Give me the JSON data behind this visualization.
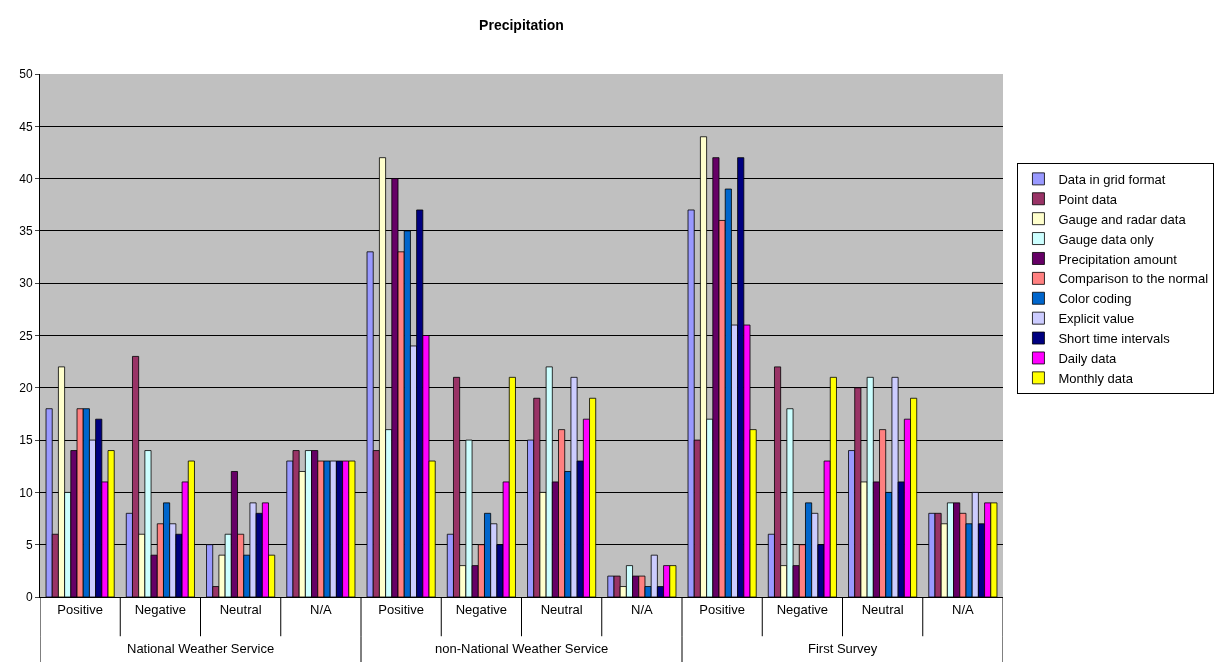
{
  "chart_data": {
    "type": "bar",
    "title": "Precipitation",
    "categories": [
      "Positive",
      "Negative",
      "Neutral",
      "N/A",
      "Positive",
      "Negative",
      "Neutral",
      "N/A",
      "Positive",
      "Negative",
      "Neutral",
      "N/A"
    ],
    "annotations": [
      "National Weather Service",
      "non-National Weather Service",
      "First Survey"
    ],
    "series": [
      {
        "name": "Data in grid format",
        "color": "#9999ff",
        "values": [
          18,
          8,
          5,
          13,
          33,
          6,
          15,
          2,
          37,
          6,
          14,
          8
        ]
      },
      {
        "name": "Point data",
        "color": "#993366",
        "values": [
          6,
          23,
          1,
          14,
          14,
          21,
          19,
          2,
          15,
          22,
          20,
          8
        ]
      },
      {
        "name": "Gauge and radar data",
        "color": "#ffffcc",
        "values": [
          22,
          6,
          4,
          12,
          42,
          3,
          10,
          1,
          44,
          3,
          11,
          7
        ]
      },
      {
        "name": "Gauge data only",
        "color": "#ccffff",
        "values": [
          10,
          14,
          6,
          14,
          16,
          15,
          22,
          3,
          17,
          18,
          21,
          9
        ]
      },
      {
        "name": "Precipitation amount",
        "color": "#660066",
        "values": [
          14,
          4,
          12,
          14,
          40,
          3,
          11,
          2,
          42,
          3,
          11,
          9
        ]
      },
      {
        "name": "Comparison to the normal",
        "color": "#ff8080",
        "values": [
          18,
          7,
          6,
          13,
          33,
          5,
          16,
          2,
          36,
          5,
          16,
          8
        ]
      },
      {
        "name": "Color coding",
        "color": "#0066cc",
        "values": [
          18,
          9,
          4,
          13,
          35,
          8,
          12,
          1,
          39,
          9,
          10,
          7
        ]
      },
      {
        "name": "Explicit value",
        "color": "#ccccff",
        "values": [
          15,
          7,
          9,
          13,
          24,
          7,
          21,
          4,
          26,
          8,
          21,
          10
        ]
      },
      {
        "name": "Short time intervals",
        "color": "#000080",
        "values": [
          17,
          6,
          8,
          13,
          37,
          5,
          13,
          1,
          42,
          5,
          11,
          7
        ]
      },
      {
        "name": "Daily data",
        "color": "#ff00ff",
        "values": [
          11,
          11,
          9,
          13,
          25,
          11,
          17,
          3,
          26,
          13,
          17,
          9
        ]
      },
      {
        "name": "Monthly data",
        "color": "#ffff00",
        "values": [
          14,
          13,
          4,
          13,
          13,
          21,
          19,
          3,
          16,
          21,
          19,
          9
        ]
      }
    ],
    "ylim": [
      0,
      50
    ],
    "yticks": [
      0,
      5,
      10,
      15,
      20,
      25,
      30,
      35,
      40,
      45,
      50
    ],
    "grid": "y",
    "legend": "right"
  }
}
